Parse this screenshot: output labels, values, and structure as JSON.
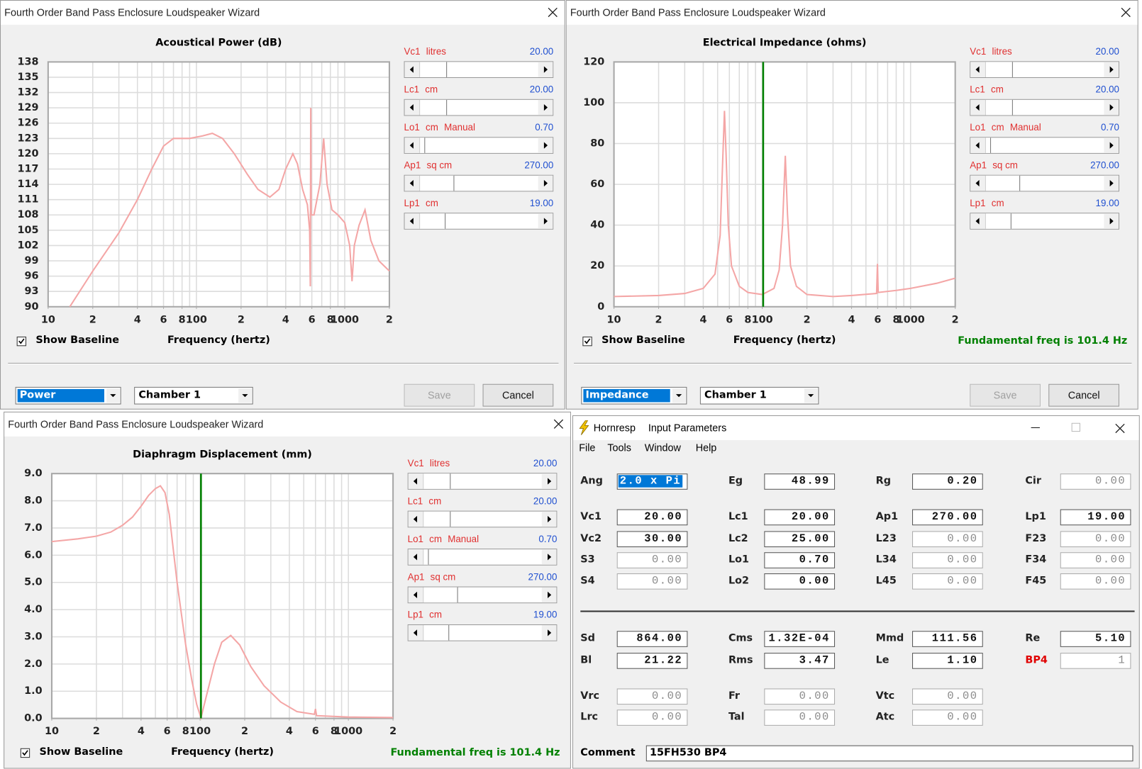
{
  "chart_data": [
    {
      "type": "line",
      "title": "Acoustical Power (dB)",
      "xlabel": "Frequency (hertz)",
      "xscale": "log",
      "xlim": [
        10,
        2000
      ],
      "xticks": [
        10,
        {
          "value": 20,
          "label": "2"
        },
        {
          "value": 40,
          "label": "4"
        },
        {
          "value": 60,
          "label": "6"
        },
        {
          "value": 80,
          "label": "8"
        },
        100,
        {
          "value": 200,
          "label": "2"
        },
        {
          "value": 400,
          "label": "4"
        },
        {
          "value": 600,
          "label": "6"
        },
        {
          "value": 800,
          "label": "8"
        },
        1000,
        {
          "value": 2000,
          "label": "2"
        }
      ],
      "xgrid": [
        10,
        20,
        30,
        40,
        50,
        60,
        70,
        80,
        90,
        100,
        200,
        300,
        400,
        500,
        600,
        700,
        800,
        900,
        1000,
        2000
      ],
      "ylim": [
        90,
        138
      ],
      "yticks": [
        90,
        93,
        96,
        99,
        102,
        105,
        108,
        111,
        114,
        117,
        120,
        123,
        126,
        129,
        132,
        135,
        138
      ],
      "grid": true,
      "color": "#f4a6a6",
      "x": [
        14,
        20,
        30,
        40,
        50,
        60,
        70,
        90,
        110,
        128,
        150,
        180,
        220,
        260,
        313,
        360,
        400,
        447,
        480,
        520,
        560,
        580,
        586,
        590,
        594,
        620,
        680,
        721,
        760,
        820,
        900,
        1000,
        1080,
        1120,
        1160,
        1250,
        1370,
        1500,
        1700,
        2000
      ],
      "values": [
        90,
        97,
        104.5,
        111,
        117,
        121.5,
        123,
        123,
        123.5,
        124,
        123,
        120,
        116,
        113,
        111.5,
        113,
        117,
        120,
        118,
        113,
        110,
        105,
        94,
        129,
        108,
        108,
        114,
        123,
        114,
        109,
        108,
        106.5,
        102,
        95,
        102,
        106,
        109,
        103,
        99,
        97
      ]
    },
    {
      "type": "line",
      "title": "Electrical Impedance (ohms)",
      "xlabel": "Frequency (hertz)",
      "xscale": "log",
      "xlim": [
        10,
        2000
      ],
      "xticks": [
        10,
        {
          "value": 20,
          "label": "2"
        },
        {
          "value": 40,
          "label": "4"
        },
        {
          "value": 60,
          "label": "6"
        },
        {
          "value": 80,
          "label": "8"
        },
        100,
        {
          "value": 200,
          "label": "2"
        },
        {
          "value": 400,
          "label": "4"
        },
        {
          "value": 600,
          "label": "6"
        },
        {
          "value": 800,
          "label": "8"
        },
        1000,
        {
          "value": 2000,
          "label": "2"
        }
      ],
      "xgrid": [
        10,
        20,
        30,
        40,
        50,
        60,
        70,
        80,
        90,
        100,
        200,
        300,
        400,
        500,
        600,
        700,
        800,
        900,
        1000,
        2000
      ],
      "ylim": [
        0,
        120
      ],
      "yticks": [
        0,
        20,
        40,
        60,
        80,
        100,
        120
      ],
      "grid": true,
      "color": "#f4a6a6",
      "marker_x": 101.4,
      "marker_color": "#008000",
      "x": [
        10,
        20,
        30,
        40,
        48,
        52,
        54,
        55.6,
        57,
        59,
        62,
        70,
        80,
        100,
        120,
        130,
        137,
        143,
        148,
        155,
        170,
        200,
        300,
        400,
        590,
        598,
        605,
        800,
        1000,
        1500,
        2000
      ],
      "values": [
        5,
        5.5,
        6.5,
        9,
        16,
        35,
        70,
        96,
        75,
        40,
        20,
        10,
        7,
        6,
        9,
        18,
        40,
        74,
        45,
        20,
        10,
        6,
        5,
        5.5,
        6.5,
        21,
        7,
        8,
        9,
        11.5,
        14
      ]
    },
    {
      "type": "line",
      "title": "Diaphragm Displacement (mm)",
      "xlabel": "Frequency (hertz)",
      "xscale": "log",
      "xlim": [
        10,
        2000
      ],
      "xticks": [
        10,
        {
          "value": 20,
          "label": "2"
        },
        {
          "value": 40,
          "label": "4"
        },
        {
          "value": 60,
          "label": "6"
        },
        {
          "value": 80,
          "label": "8"
        },
        100,
        {
          "value": 200,
          "label": "2"
        },
        {
          "value": 400,
          "label": "4"
        },
        {
          "value": 600,
          "label": "6"
        },
        {
          "value": 800,
          "label": "8"
        },
        1000,
        {
          "value": 2000,
          "label": "2"
        }
      ],
      "xgrid": [
        10,
        20,
        30,
        40,
        50,
        60,
        70,
        80,
        90,
        100,
        200,
        300,
        400,
        500,
        600,
        700,
        800,
        900,
        1000,
        2000
      ],
      "ylim": [
        0,
        9
      ],
      "yticks": [
        {
          "value": 0,
          "label": "0.0"
        },
        {
          "value": 1,
          "label": "1.0"
        },
        {
          "value": 2,
          "label": "2.0"
        },
        {
          "value": 3,
          "label": "3.0"
        },
        {
          "value": 4,
          "label": "4.0"
        },
        {
          "value": 5,
          "label": "5.0"
        },
        {
          "value": 6,
          "label": "6.0"
        },
        {
          "value": 7,
          "label": "7.0"
        },
        {
          "value": 8,
          "label": "8.0"
        },
        {
          "value": 9,
          "label": "9.0"
        }
      ],
      "grid": true,
      "color": "#f4a6a6",
      "marker_x": 101.4,
      "marker_color": "#008000",
      "x": [
        10,
        15,
        20,
        25,
        30,
        35,
        40,
        45,
        50,
        54,
        58,
        62,
        66,
        70,
        75,
        80,
        88,
        95,
        101.4,
        110,
        125,
        140,
        161,
        185,
        220,
        270,
        350,
        450,
        590,
        600,
        610,
        1000,
        2000
      ],
      "values": [
        6.5,
        6.6,
        6.7,
        6.85,
        7.1,
        7.4,
        7.8,
        8.2,
        8.45,
        8.55,
        8.3,
        7.5,
        6.2,
        5,
        3.8,
        2.7,
        1.4,
        0.5,
        0.02,
        0.8,
        2,
        2.8,
        3.05,
        2.7,
        1.9,
        1.2,
        0.6,
        0.25,
        0.15,
        0.35,
        0.1,
        0.05,
        0.03
      ]
    }
  ],
  "wizards": [
    {
      "title": "Fourth Order Band Pass Enclosure Loudspeaker Wizard",
      "params": [
        {
          "name": "Vc1",
          "unit": "litres",
          "value": "20.00"
        },
        {
          "name": "Lc1",
          "unit": "cm",
          "value": "20.00"
        },
        {
          "name": "Lo1",
          "unit": "cm",
          "mode": "Manual",
          "value": "0.70"
        },
        {
          "name": "Ap1",
          "unit": "sq cm",
          "value": "270.00"
        },
        {
          "name": "Lp1",
          "unit": "cm",
          "value": "19.00"
        }
      ],
      "show_baseline": "Show Baseline",
      "view": "Power",
      "chamber": "Chamber 1",
      "save": "Save",
      "cancel": "Cancel"
    },
    {
      "title": "Fourth Order Band Pass Enclosure Loudspeaker Wizard",
      "params": [
        {
          "name": "Vc1",
          "unit": "litres",
          "value": "20.00"
        },
        {
          "name": "Lc1",
          "unit": "cm",
          "value": "20.00"
        },
        {
          "name": "Lo1",
          "unit": "cm",
          "mode": "Manual",
          "value": "0.70"
        },
        {
          "name": "Ap1",
          "unit": "sq cm",
          "value": "270.00"
        },
        {
          "name": "Lp1",
          "unit": "cm",
          "value": "19.00"
        }
      ],
      "show_baseline": "Show Baseline",
      "fundamental": "Fundamental freq is 101.4 Hz",
      "view": "Impedance",
      "chamber": "Chamber 1",
      "save": "Save",
      "cancel": "Cancel"
    },
    {
      "title": "Fourth Order Band Pass Enclosure Loudspeaker Wizard",
      "params": [
        {
          "name": "Vc1",
          "unit": "litres",
          "value": "20.00"
        },
        {
          "name": "Lc1",
          "unit": "cm",
          "value": "20.00"
        },
        {
          "name": "Lo1",
          "unit": "cm",
          "mode": "Manual",
          "value": "0.70"
        },
        {
          "name": "Ap1",
          "unit": "sq cm",
          "value": "270.00"
        },
        {
          "name": "Lp1",
          "unit": "cm",
          "value": "19.00"
        }
      ],
      "show_baseline": "Show Baseline",
      "fundamental": "Fundamental freq is 101.4 Hz"
    }
  ],
  "hornresp": {
    "app": "Hornresp",
    "title": "Input Parameters",
    "menu": [
      "File",
      "Tools",
      "Window",
      "Help"
    ],
    "rows": [
      [
        {
          "label": "Ang",
          "value": "2.0 x Pi",
          "selected": true
        },
        {
          "label": "Eg",
          "value": "48.99"
        },
        {
          "label": "Rg",
          "value": "0.20"
        },
        {
          "label": "Cir",
          "value": "0.00",
          "disabled": true
        }
      ],
      [
        {
          "label": "Vc1",
          "value": "20.00"
        },
        {
          "label": "Lc1",
          "value": "20.00"
        },
        {
          "label": "Ap1",
          "value": "270.00"
        },
        {
          "label": "Lp1",
          "value": "19.00"
        }
      ],
      [
        {
          "label": "Vc2",
          "value": "30.00"
        },
        {
          "label": "Lc2",
          "value": "25.00"
        },
        {
          "label": "L23",
          "value": "0.00",
          "disabled": true
        },
        {
          "label": "F23",
          "value": "0.00",
          "disabled": true
        }
      ],
      [
        {
          "label": "S3",
          "value": "0.00",
          "disabled": true
        },
        {
          "label": "Lo1",
          "value": "0.70"
        },
        {
          "label": "L34",
          "value": "0.00",
          "disabled": true
        },
        {
          "label": "F34",
          "value": "0.00",
          "disabled": true
        }
      ],
      [
        {
          "label": "S4",
          "value": "0.00",
          "disabled": true
        },
        {
          "label": "Lo2",
          "value": "0.00"
        },
        {
          "label": "L45",
          "value": "0.00",
          "disabled": true
        },
        {
          "label": "F45",
          "value": "0.00",
          "disabled": true
        }
      ],
      [
        {
          "label": "Sd",
          "value": "864.00"
        },
        {
          "label": "Cms",
          "value": "1.32E-04"
        },
        {
          "label": "Mmd",
          "value": "111.56"
        },
        {
          "label": "Re",
          "value": "5.10"
        }
      ],
      [
        {
          "label": "Bl",
          "value": "21.22"
        },
        {
          "label": "Rms",
          "value": "3.47"
        },
        {
          "label": "Le",
          "value": "1.10"
        },
        {
          "label": "BP4",
          "value": "1",
          "disabled": true,
          "label_color": "#e00000"
        }
      ],
      [
        {
          "label": "Vrc",
          "value": "0.00",
          "disabled": true
        },
        {
          "label": "Fr",
          "value": "0.00",
          "disabled": true
        },
        {
          "label": "Vtc",
          "value": "0.00",
          "disabled": true
        }
      ],
      [
        {
          "label": "Lrc",
          "value": "0.00",
          "disabled": true
        },
        {
          "label": "Tal",
          "value": "0.00",
          "disabled": true
        },
        {
          "label": "Atc",
          "value": "0.00",
          "disabled": true
        }
      ]
    ],
    "comment_label": "Comment",
    "comment": "15FH530 BP4"
  }
}
